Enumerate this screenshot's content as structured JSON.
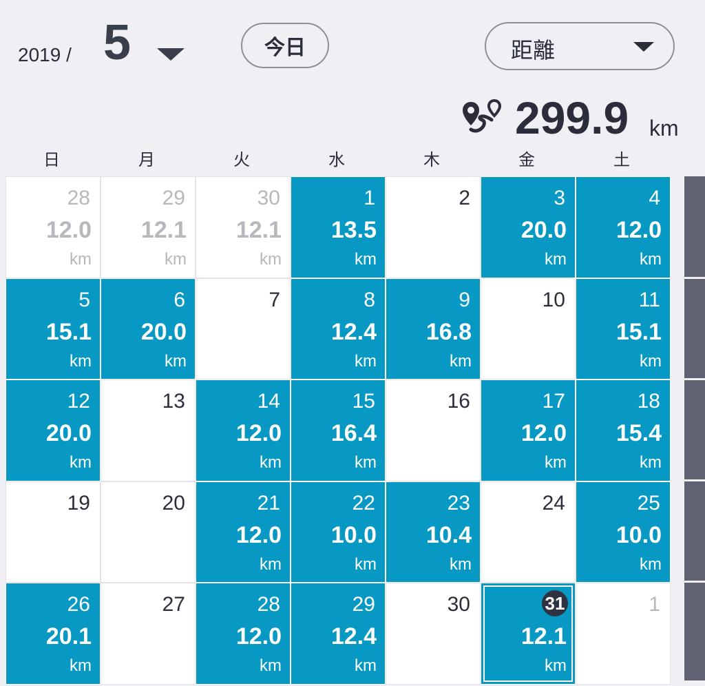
{
  "header": {
    "year": "2019 /",
    "month": "5",
    "today_label": "今日",
    "metric_label": "距離",
    "total_value": "299.9",
    "total_unit": "km"
  },
  "weekdays": [
    "日",
    "月",
    "火",
    "水",
    "木",
    "金",
    "土"
  ],
  "colors": {
    "active": "#0799c4",
    "background": "#efeff4",
    "text": "#2b2e3a"
  },
  "icons": {
    "route": "route-pin-icon",
    "caret": "chevron-down-icon"
  },
  "calendar": {
    "days": [
      {
        "day": "28",
        "dist": "12.0",
        "unit": "km",
        "active": false,
        "outside": true
      },
      {
        "day": "29",
        "dist": "12.1",
        "unit": "km",
        "active": false,
        "outside": true
      },
      {
        "day": "30",
        "dist": "12.1",
        "unit": "km",
        "active": false,
        "outside": true
      },
      {
        "day": "1",
        "dist": "13.5",
        "unit": "km",
        "active": true
      },
      {
        "day": "2",
        "dist": "",
        "unit": "",
        "active": false
      },
      {
        "day": "3",
        "dist": "20.0",
        "unit": "km",
        "active": true
      },
      {
        "day": "4",
        "dist": "12.0",
        "unit": "km",
        "active": true
      },
      {
        "day": "5",
        "dist": "15.1",
        "unit": "km",
        "active": true
      },
      {
        "day": "6",
        "dist": "20.0",
        "unit": "km",
        "active": true
      },
      {
        "day": "7",
        "dist": "",
        "unit": "",
        "active": false
      },
      {
        "day": "8",
        "dist": "12.4",
        "unit": "km",
        "active": true
      },
      {
        "day": "9",
        "dist": "16.8",
        "unit": "km",
        "active": true
      },
      {
        "day": "10",
        "dist": "",
        "unit": "",
        "active": false
      },
      {
        "day": "11",
        "dist": "15.1",
        "unit": "km",
        "active": true
      },
      {
        "day": "12",
        "dist": "20.0",
        "unit": "km",
        "active": true
      },
      {
        "day": "13",
        "dist": "",
        "unit": "",
        "active": false
      },
      {
        "day": "14",
        "dist": "12.0",
        "unit": "km",
        "active": true
      },
      {
        "day": "15",
        "dist": "16.4",
        "unit": "km",
        "active": true
      },
      {
        "day": "16",
        "dist": "",
        "unit": "",
        "active": false
      },
      {
        "day": "17",
        "dist": "12.0",
        "unit": "km",
        "active": true
      },
      {
        "day": "18",
        "dist": "15.4",
        "unit": "km",
        "active": true
      },
      {
        "day": "19",
        "dist": "",
        "unit": "",
        "active": false
      },
      {
        "day": "20",
        "dist": "",
        "unit": "",
        "active": false
      },
      {
        "day": "21",
        "dist": "12.0",
        "unit": "km",
        "active": true
      },
      {
        "day": "22",
        "dist": "10.0",
        "unit": "km",
        "active": true
      },
      {
        "day": "23",
        "dist": "10.4",
        "unit": "km",
        "active": true
      },
      {
        "day": "24",
        "dist": "",
        "unit": "",
        "active": false
      },
      {
        "day": "25",
        "dist": "10.0",
        "unit": "km",
        "active": true
      },
      {
        "day": "26",
        "dist": "20.1",
        "unit": "km",
        "active": true
      },
      {
        "day": "27",
        "dist": "",
        "unit": "",
        "active": false
      },
      {
        "day": "28",
        "dist": "12.0",
        "unit": "km",
        "active": true
      },
      {
        "day": "29",
        "dist": "12.4",
        "unit": "km",
        "active": true
      },
      {
        "day": "30",
        "dist": "",
        "unit": "",
        "active": false
      },
      {
        "day": "31",
        "dist": "12.1",
        "unit": "km",
        "active": true,
        "selected": true
      },
      {
        "day": "1",
        "dist": "",
        "unit": "",
        "active": false,
        "outside": true
      }
    ]
  }
}
